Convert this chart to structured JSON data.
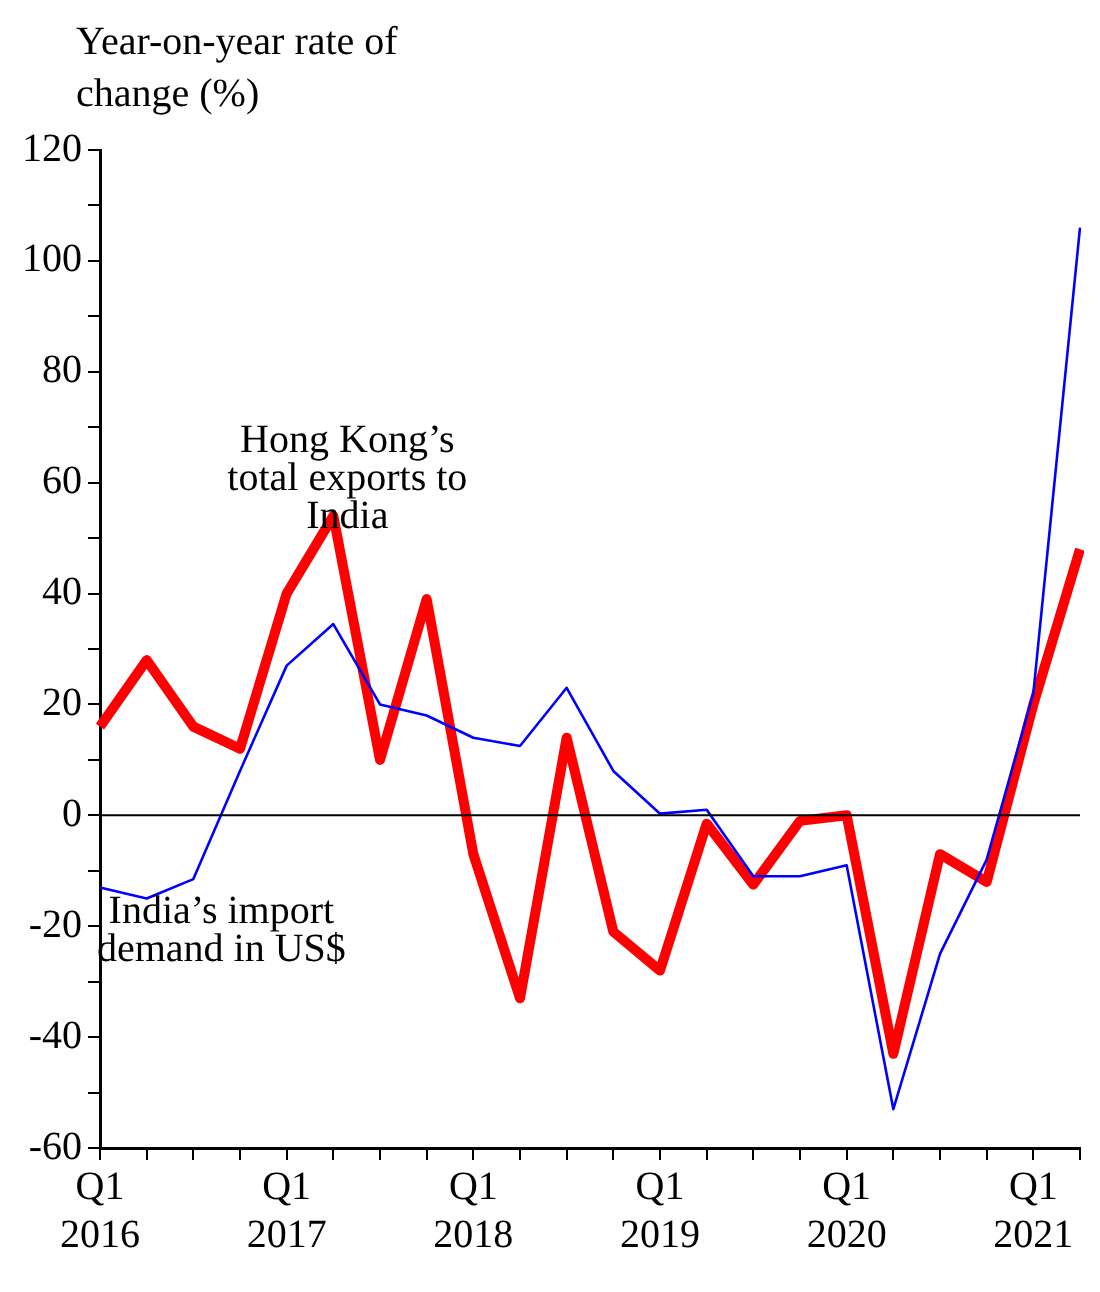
{
  "chart_data": {
    "type": "line",
    "ylabel": "Year-on-year rate of change (%)",
    "categories": [
      "Q1 2016",
      null,
      null,
      null,
      "Q1 2017",
      null,
      null,
      null,
      "Q1 2018",
      null,
      null,
      null,
      "Q1 2019",
      null,
      null,
      null,
      "Q1 2020",
      null,
      null,
      null,
      "Q1 2021",
      null
    ],
    "series": [
      {
        "name": "India’s import demand in US$",
        "color": "#0000ff",
        "values": [
          -13,
          -15,
          -11.5,
          8,
          27,
          34.5,
          20,
          18,
          14,
          12.5,
          23,
          8,
          0.3,
          1,
          -11,
          -11,
          -9,
          -53,
          -25,
          -8,
          22,
          106
        ]
      },
      {
        "name": "Hong Kong’s total exports to India",
        "color": "#ff0000",
        "values": [
          16,
          28,
          16,
          12,
          40,
          54,
          10,
          39,
          -7,
          -33,
          14,
          -21,
          -28,
          -1.5,
          -12.5,
          -1,
          0,
          -43,
          -7,
          -12,
          20,
          48
        ]
      }
    ],
    "ylim": [
      -60,
      120
    ],
    "yticks": [
      -60,
      {
        "value": -50,
        "label": null
      },
      -40,
      {
        "value": -30,
        "label": null
      },
      -20,
      {
        "value": -10,
        "label": null
      },
      0,
      {
        "value": 10,
        "label": null
      },
      20,
      {
        "value": 30,
        "label": null
      },
      40,
      {
        "value": 50,
        "label": null
      },
      60,
      {
        "value": 70,
        "label": null
      },
      80,
      {
        "value": 90,
        "label": null
      },
      100,
      {
        "value": 110,
        "label": null
      },
      120
    ],
    "ref_lines": [
      {
        "axis": "y",
        "value": 0,
        "color": "#000000"
      }
    ],
    "grid": false,
    "legend": false,
    "marker": "none",
    "line_style": "solid"
  }
}
